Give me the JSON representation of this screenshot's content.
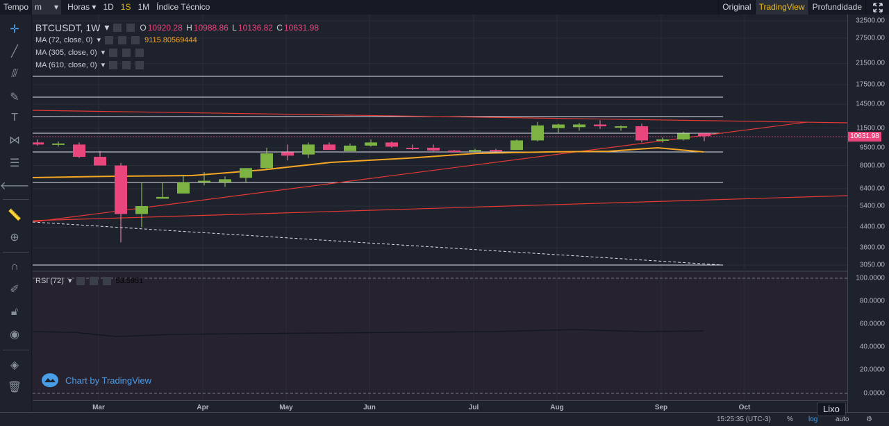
{
  "topbar": {
    "tempo": "Tempo",
    "interval": "m",
    "horas": "Horas",
    "periods": [
      "1D",
      "1S",
      "1M"
    ],
    "indicator": "Índice Técnico",
    "right": [
      "Original",
      "TradingView",
      "Profundidade"
    ]
  },
  "legend": {
    "symbol": "BTCUSDT, 1W",
    "open_label": "O",
    "open": "10920.28",
    "high_label": "H",
    "high": "10988.86",
    "low_label": "L",
    "low": "10136.82",
    "close_label": "C",
    "close": "10631.98",
    "ma1": "MA (72, close, 0)",
    "ma1_value": "9115.80569444",
    "ma2": "MA (305, close, 0)",
    "ma3": "MA (610, close, 0)",
    "rsi": "RSI (72)",
    "rsi_value": "53.5951"
  },
  "price_tag": "10631.98",
  "watermark": "Chart by TradingView",
  "tooltip": "Lixo",
  "footer": {
    "time": "15:25:35 (UTC-3)",
    "percent": "%",
    "log": "log",
    "auto": "auto"
  },
  "colors": {
    "up": "#7cb342",
    "down": "#e8467c",
    "ma": "#f5a623",
    "trend": "#e53935"
  },
  "chart_data": {
    "type": "candlestick",
    "price_ticks": [
      "32500.00",
      "27500.00",
      "21500.00",
      "17500.00",
      "14500.00",
      "11500.00",
      "9500.00",
      "8000.00",
      "6400.00",
      "5400.00",
      "4400.00",
      "3600.00",
      "3050.00"
    ],
    "rsi_ticks": [
      "100.0000",
      "80.0000",
      "60.0000",
      "40.0000",
      "20.0000",
      "0.0000"
    ],
    "months": [
      "Mar",
      "Apr",
      "May",
      "Jun",
      "Jul",
      "Aug",
      "Sep",
      "Oct"
    ],
    "candles": [
      {
        "o": 10000,
        "h": 10300,
        "l": 9700,
        "c": 9800
      },
      {
        "o": 9900,
        "h": 10100,
        "l": 9600,
        "c": 9900
      },
      {
        "o": 9800,
        "h": 10000,
        "l": 8600,
        "c": 8700
      },
      {
        "o": 8700,
        "h": 9200,
        "l": 8000,
        "c": 8000
      },
      {
        "o": 8000,
        "h": 8200,
        "l": 3800,
        "c": 5000
      },
      {
        "o": 5000,
        "h": 6800,
        "l": 4400,
        "c": 5400
      },
      {
        "o": 5800,
        "h": 6800,
        "l": 5800,
        "c": 5900
      },
      {
        "o": 6100,
        "h": 7300,
        "l": 6100,
        "c": 6800
      },
      {
        "o": 6800,
        "h": 7500,
        "l": 6600,
        "c": 6900
      },
      {
        "o": 6800,
        "h": 7200,
        "l": 6500,
        "c": 7000
      },
      {
        "o": 7100,
        "h": 7800,
        "l": 6800,
        "c": 7800
      },
      {
        "o": 7800,
        "h": 9500,
        "l": 7700,
        "c": 9000
      },
      {
        "o": 9100,
        "h": 9800,
        "l": 8400,
        "c": 8800
      },
      {
        "o": 8900,
        "h": 10000,
        "l": 8600,
        "c": 9800
      },
      {
        "o": 9800,
        "h": 10000,
        "l": 9300,
        "c": 9300
      },
      {
        "o": 9200,
        "h": 9900,
        "l": 9200,
        "c": 9700
      },
      {
        "o": 9700,
        "h": 10300,
        "l": 9600,
        "c": 10000
      },
      {
        "o": 10000,
        "h": 10100,
        "l": 9500,
        "c": 9600
      },
      {
        "o": 9500,
        "h": 9800,
        "l": 9300,
        "c": 9400
      },
      {
        "o": 9500,
        "h": 9800,
        "l": 9200,
        "c": 9250
      },
      {
        "o": 9250,
        "h": 9300,
        "l": 9100,
        "c": 9200
      },
      {
        "o": 9200,
        "h": 9400,
        "l": 9150,
        "c": 9300
      },
      {
        "o": 9300,
        "h": 9400,
        "l": 9150,
        "c": 9250
      },
      {
        "o": 9300,
        "h": 10300,
        "l": 9300,
        "c": 10200
      },
      {
        "o": 10200,
        "h": 12200,
        "l": 10100,
        "c": 11800
      },
      {
        "o": 11500,
        "h": 12000,
        "l": 11000,
        "c": 11900
      },
      {
        "o": 11600,
        "h": 12100,
        "l": 11200,
        "c": 11900
      },
      {
        "o": 11900,
        "h": 12400,
        "l": 11400,
        "c": 11700
      },
      {
        "o": 11600,
        "h": 11800,
        "l": 11200,
        "c": 11700
      },
      {
        "o": 11700,
        "h": 12000,
        "l": 10000,
        "c": 10200
      },
      {
        "o": 10200,
        "h": 10500,
        "l": 10000,
        "c": 10300
      },
      {
        "o": 10300,
        "h": 11100,
        "l": 10200,
        "c": 10900
      },
      {
        "o": 10920.28,
        "h": 10988.86,
        "l": 10136.82,
        "c": 10631.98
      }
    ]
  }
}
